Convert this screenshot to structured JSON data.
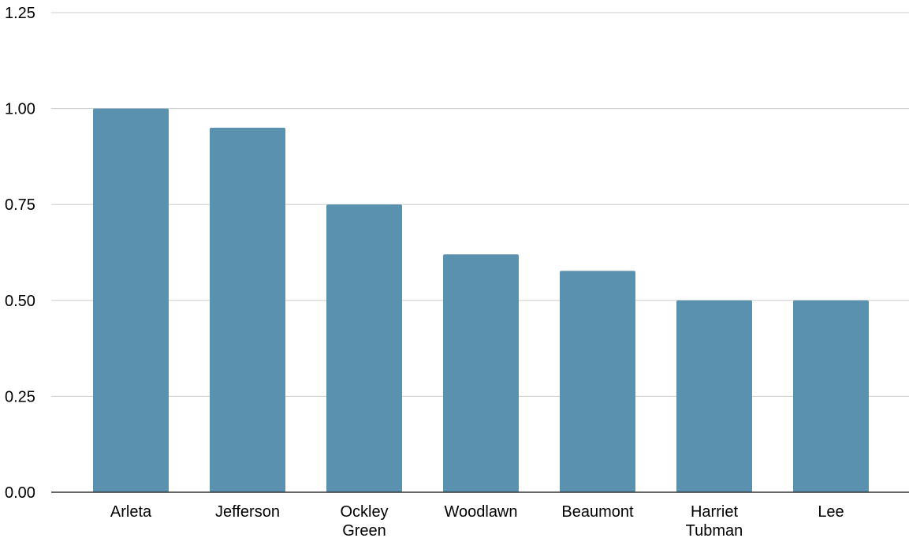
{
  "chart_data": {
    "type": "bar",
    "categories": [
      [
        "Arleta"
      ],
      [
        "Jefferson"
      ],
      [
        "Ockley",
        "Green"
      ],
      [
        "Woodlawn"
      ],
      [
        "Beaumont"
      ],
      [
        "Harriet",
        "Tubman"
      ],
      [
        "Lee"
      ]
    ],
    "values": [
      1.0,
      0.95,
      0.75,
      0.62,
      0.577,
      0.5,
      0.5
    ],
    "ylim": [
      0,
      1.25
    ],
    "yticks": [
      "0.00",
      "0.25",
      "0.50",
      "0.75",
      "1.00",
      "1.25"
    ],
    "grid": true,
    "legend": "none",
    "colors": {
      "bar": "#5a91ae",
      "grid": "#cccccc",
      "axis": "#333333"
    }
  }
}
